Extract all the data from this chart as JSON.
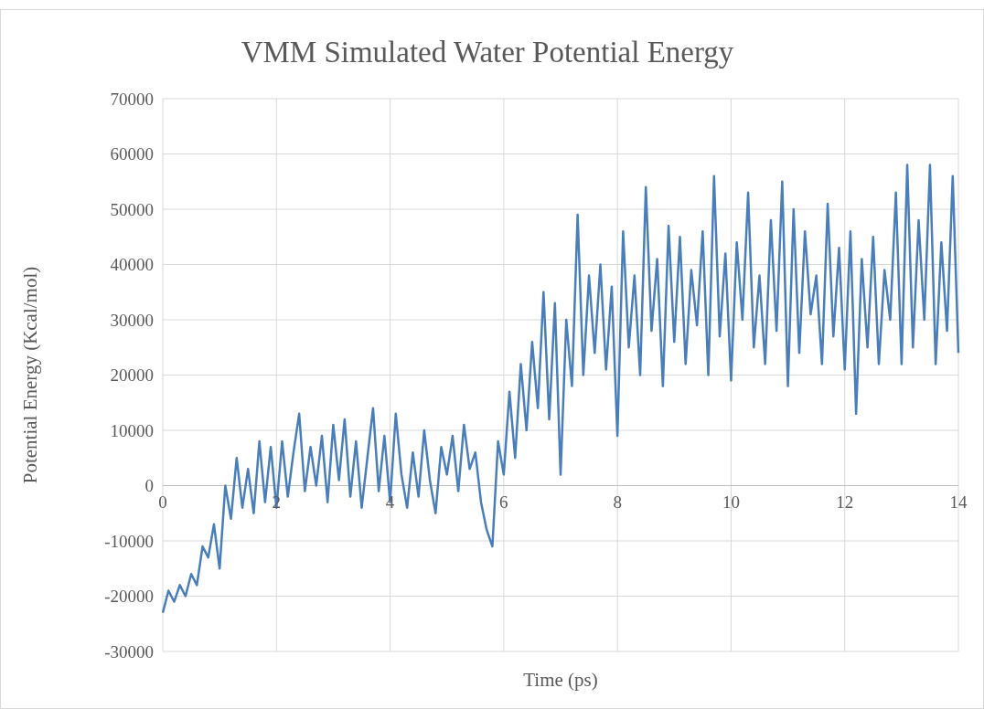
{
  "chart_data": {
    "type": "line",
    "title": "VMM Simulated Water Potential Energy",
    "xlabel": "Time (ps)",
    "ylabel": "Potential Energy (Kcal/mol)",
    "x": [
      0,
      0.1,
      0.2,
      0.3,
      0.4,
      0.5,
      0.6,
      0.7,
      0.8,
      0.9,
      1,
      1.1,
      1.2,
      1.3,
      1.4,
      1.5,
      1.6,
      1.7,
      1.8,
      1.9,
      2,
      2.1,
      2.2,
      2.3,
      2.4,
      2.5,
      2.6,
      2.7,
      2.8,
      2.9,
      3,
      3.1,
      3.2,
      3.3,
      3.4,
      3.5,
      3.6,
      3.7,
      3.8,
      3.9,
      4,
      4.1,
      4.2,
      4.3,
      4.4,
      4.5,
      4.6,
      4.7,
      4.8,
      4.9,
      5,
      5.1,
      5.2,
      5.3,
      5.4,
      5.5,
      5.6,
      5.7,
      5.8,
      5.9,
      6,
      6.1,
      6.2,
      6.3,
      6.4,
      6.5,
      6.6,
      6.7,
      6.8,
      6.9,
      7,
      7.1,
      7.2,
      7.3,
      7.4,
      7.5,
      7.6,
      7.7,
      7.8,
      7.9,
      8,
      8.1,
      8.2,
      8.3,
      8.4,
      8.5,
      8.6,
      8.7,
      8.8,
      8.9,
      9,
      9.1,
      9.2,
      9.3,
      9.4,
      9.5,
      9.6,
      9.7,
      9.8,
      9.9,
      10,
      10.1,
      10.2,
      10.3,
      10.4,
      10.5,
      10.6,
      10.7,
      10.8,
      10.9,
      11,
      11.1,
      11.2,
      11.3,
      11.4,
      11.5,
      11.6,
      11.7,
      11.8,
      11.9,
      12,
      12.1,
      12.2,
      12.3,
      12.4,
      12.5,
      12.6,
      12.7,
      12.8,
      12.9,
      13,
      13.1,
      13.2,
      13.3,
      13.4,
      13.5,
      13.6,
      13.7,
      13.8,
      13.9,
      14
    ],
    "series": [
      {
        "color": "#4a7ebb",
        "values": [
          -23000,
          -19000,
          -21000,
          -18000,
          -20000,
          -16000,
          -18000,
          -11000,
          -13000,
          -7000,
          -15000,
          0,
          -6000,
          5000,
          -4000,
          3000,
          -5000,
          8000,
          -3000,
          7000,
          -4000,
          8000,
          -2000,
          6000,
          13000,
          -1000,
          7000,
          0,
          9000,
          -3000,
          11000,
          1000,
          12000,
          -2000,
          8000,
          -4000,
          5000,
          14000,
          -1000,
          9000,
          -3000,
          13000,
          2000,
          -4000,
          6000,
          -2000,
          10000,
          1000,
          -5000,
          7000,
          2000,
          9000,
          -1000,
          11000,
          3000,
          6000,
          -3000,
          -8000,
          -11000,
          8000,
          2000,
          17000,
          5000,
          22000,
          10000,
          26000,
          14000,
          35000,
          12000,
          33000,
          2000,
          30000,
          18000,
          49000,
          20000,
          38000,
          24000,
          40000,
          21000,
          36000,
          9000,
          46000,
          25000,
          38000,
          20000,
          54000,
          28000,
          41000,
          18000,
          47000,
          26000,
          45000,
          22000,
          39000,
          29000,
          46000,
          20000,
          56000,
          27000,
          42000,
          19000,
          44000,
          30000,
          53000,
          25000,
          38000,
          22000,
          48000,
          28000,
          55000,
          18000,
          50000,
          24000,
          46000,
          31000,
          38000,
          22000,
          51000,
          27000,
          43000,
          21000,
          46000,
          13000,
          41000,
          25000,
          45000,
          22000,
          39000,
          30000,
          53000,
          22000,
          58000,
          25000,
          48000,
          30000,
          58000,
          22000,
          44000,
          28000,
          56000,
          24000
        ]
      }
    ],
    "xlim": [
      0,
      14
    ],
    "xticks": [
      0,
      2,
      4,
      6,
      8,
      10,
      12,
      14
    ],
    "ylim": [
      -30000,
      70000
    ],
    "yticks": [
      -30000,
      -20000,
      -10000,
      0,
      10000,
      20000,
      30000,
      40000,
      50000,
      60000,
      70000
    ],
    "grid": true,
    "line_style": "solid"
  }
}
